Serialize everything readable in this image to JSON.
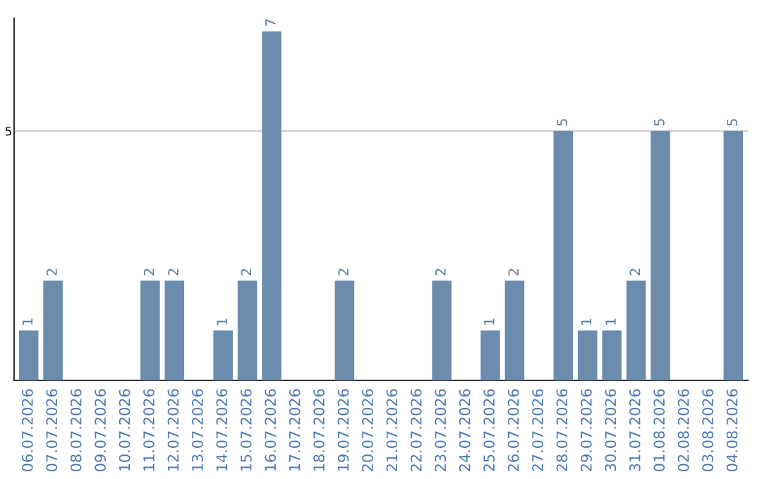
{
  "chart_data": {
    "type": "bar",
    "categories": [
      "06.07.2026",
      "07.07.2026",
      "08.07.2026",
      "09.07.2026",
      "10.07.2026",
      "11.07.2026",
      "12.07.2026",
      "13.07.2026",
      "14.07.2026",
      "15.07.2026",
      "16.07.2026",
      "17.07.2026",
      "18.07.2026",
      "19.07.2026",
      "20.07.2026",
      "21.07.2026",
      "22.07.2026",
      "23.07.2026",
      "24.07.2026",
      "25.07.2026",
      "26.07.2026",
      "27.07.2026",
      "28.07.2026",
      "29.07.2026",
      "30.07.2026",
      "31.07.2026",
      "01.08.2026",
      "02.08.2026",
      "03.08.2026",
      "04.08.2026"
    ],
    "values": [
      1,
      2,
      null,
      null,
      null,
      2,
      2,
      null,
      1,
      2,
      7,
      null,
      null,
      2,
      null,
      null,
      null,
      2,
      null,
      1,
      2,
      null,
      5,
      1,
      1,
      2,
      5,
      null,
      null,
      5
    ],
    "color": "#6b8cad",
    "ylim": [
      0,
      7.26
    ],
    "yticks": [
      5
    ],
    "grid": "y",
    "data_labels": true
  }
}
